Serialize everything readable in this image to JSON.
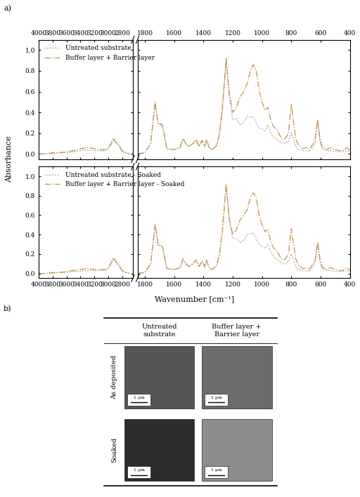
{
  "panel_labels": [
    "a)",
    "b)"
  ],
  "chart_data": [
    {
      "type": "line",
      "ylabel": "Absorbance",
      "legend": "upper left",
      "grid": false,
      "ylim": [
        -0.05,
        1.1
      ],
      "yticks": [
        {
          "value": 0,
          "label": "0.0"
        },
        0.2,
        0.4,
        0.6,
        0.8,
        {
          "value": 1,
          "label": "1.0"
        }
      ],
      "segments": [
        {
          "xlim": [
            4000,
            2650
          ],
          "xticks": [
            4000,
            3800,
            3600,
            3400,
            3200,
            3000,
            2800
          ],
          "x": [
            4000,
            3900,
            3800,
            3700,
            3600,
            3500,
            3400,
            3300,
            3200,
            3100,
            3050,
            3000,
            2960,
            2930,
            2920,
            2900,
            2870,
            2850,
            2830,
            2800,
            2750,
            2700
          ]
        },
        {
          "xlim": [
            1850,
            400
          ],
          "xticks": [
            1800,
            1600,
            1400,
            1200,
            1000,
            800,
            600,
            400
          ],
          "x": [
            1850,
            1800,
            1760,
            1730,
            1710,
            1680,
            1650,
            1600,
            1560,
            1540,
            1520,
            1500,
            1470,
            1450,
            1430,
            1410,
            1390,
            1380,
            1360,
            1340,
            1310,
            1290,
            1270,
            1245,
            1225,
            1200,
            1175,
            1150,
            1125,
            1100,
            1080,
            1060,
            1040,
            1020,
            1000,
            980,
            960,
            940,
            920,
            900,
            880,
            860,
            840,
            820,
            800,
            785,
            770,
            750,
            720,
            700,
            680,
            660,
            640,
            620,
            605,
            590,
            560,
            530,
            500,
            470,
            450,
            420,
            400
          ]
        }
      ],
      "series": [
        {
          "name": "Untreated substrate",
          "color": "#9a9a9a",
          "line_style": "dotted",
          "values": [
            [
              0.0,
              0.0,
              0.0,
              0.01,
              0.01,
              0.02,
              0.03,
              0.04,
              0.03,
              0.03,
              0.03,
              0.05,
              0.09,
              0.13,
              0.14,
              0.11,
              0.09,
              0.08,
              0.05,
              0.02,
              0.01,
              0.0
            ],
            [
              0.0,
              0.01,
              0.1,
              0.49,
              0.29,
              0.27,
              0.05,
              0.04,
              0.06,
              0.14,
              0.1,
              0.07,
              0.1,
              0.13,
              0.07,
              0.12,
              0.07,
              0.13,
              0.06,
              0.04,
              0.08,
              0.19,
              0.44,
              0.9,
              0.55,
              0.33,
              0.34,
              0.28,
              0.3,
              0.36,
              0.35,
              0.36,
              0.3,
              0.25,
              0.24,
              0.22,
              0.28,
              0.2,
              0.16,
              0.14,
              0.12,
              0.1,
              0.1,
              0.12,
              0.2,
              0.14,
              0.07,
              0.04,
              0.03,
              0.03,
              0.02,
              0.05,
              0.1,
              0.31,
              0.12,
              0.05,
              0.03,
              0.03,
              0.02,
              0.02,
              0.02,
              0.03,
              0.02
            ]
          ]
        },
        {
          "name": "Buffer layer + Barrier layer",
          "color": "#c89b5a",
          "line_style": "dashdot",
          "values": [
            [
              0.0,
              0.0,
              0.01,
              0.01,
              0.02,
              0.03,
              0.05,
              0.06,
              0.05,
              0.04,
              0.04,
              0.06,
              0.1,
              0.15,
              0.15,
              0.12,
              0.1,
              0.09,
              0.06,
              0.03,
              0.01,
              0.0
            ],
            [
              0.0,
              0.01,
              0.1,
              0.5,
              0.3,
              0.28,
              0.05,
              0.04,
              0.06,
              0.15,
              0.1,
              0.07,
              0.1,
              0.14,
              0.07,
              0.13,
              0.07,
              0.14,
              0.06,
              0.04,
              0.08,
              0.2,
              0.45,
              0.92,
              0.6,
              0.4,
              0.45,
              0.55,
              0.6,
              0.68,
              0.8,
              0.86,
              0.8,
              0.62,
              0.5,
              0.42,
              0.45,
              0.32,
              0.26,
              0.24,
              0.18,
              0.14,
              0.15,
              0.2,
              0.48,
              0.3,
              0.15,
              0.08,
              0.05,
              0.06,
              0.04,
              0.08,
              0.12,
              0.33,
              0.15,
              0.07,
              0.04,
              0.06,
              0.04,
              0.03,
              0.03,
              0.06,
              0.03
            ]
          ]
        }
      ]
    },
    {
      "type": "line",
      "xlabel": "Wavenumber [cm⁻¹]",
      "legend": "upper left",
      "grid": false,
      "ylim": [
        -0.05,
        1.1
      ],
      "yticks": [
        {
          "value": 0,
          "label": "0.0"
        },
        0.2,
        0.4,
        0.6,
        0.8,
        {
          "value": 1,
          "label": "1.0"
        }
      ],
      "segments": [
        {
          "xlim": [
            4000,
            2650
          ],
          "xticks": [
            4000,
            3800,
            3600,
            3400,
            3200,
            3000,
            2800
          ],
          "x": [
            4000,
            3900,
            3800,
            3700,
            3600,
            3500,
            3400,
            3300,
            3200,
            3100,
            3050,
            3000,
            2960,
            2930,
            2920,
            2900,
            2870,
            2850,
            2830,
            2800,
            2750,
            2700
          ]
        },
        {
          "xlim": [
            1850,
            400
          ],
          "xticks": [
            1800,
            1600,
            1400,
            1200,
            1000,
            800,
            600,
            400
          ],
          "x": [
            1850,
            1800,
            1760,
            1730,
            1710,
            1680,
            1650,
            1600,
            1560,
            1540,
            1520,
            1500,
            1470,
            1450,
            1430,
            1410,
            1390,
            1380,
            1360,
            1340,
            1310,
            1290,
            1270,
            1245,
            1225,
            1200,
            1175,
            1150,
            1125,
            1100,
            1080,
            1060,
            1040,
            1020,
            1000,
            980,
            960,
            940,
            920,
            900,
            880,
            860,
            840,
            820,
            800,
            785,
            770,
            750,
            720,
            700,
            680,
            660,
            640,
            620,
            605,
            590,
            560,
            530,
            500,
            470,
            450,
            420,
            400
          ]
        }
      ],
      "series": [
        {
          "name": "Untreated substrate - Soaked",
          "color": "#9a9a9a",
          "line_style": "dotted",
          "values": [
            [
              0.0,
              0.0,
              0.0,
              0.01,
              0.01,
              0.02,
              0.02,
              0.03,
              0.03,
              0.03,
              0.03,
              0.05,
              0.1,
              0.14,
              0.15,
              0.12,
              0.09,
              0.08,
              0.05,
              0.02,
              0.01,
              0.0
            ],
            [
              0.0,
              0.01,
              0.1,
              0.49,
              0.29,
              0.27,
              0.05,
              0.04,
              0.06,
              0.14,
              0.1,
              0.07,
              0.1,
              0.13,
              0.07,
              0.12,
              0.07,
              0.13,
              0.06,
              0.04,
              0.08,
              0.19,
              0.44,
              0.9,
              0.56,
              0.36,
              0.36,
              0.32,
              0.34,
              0.4,
              0.41,
              0.42,
              0.36,
              0.3,
              0.28,
              0.26,
              0.3,
              0.22,
              0.17,
              0.15,
              0.12,
              0.1,
              0.1,
              0.12,
              0.2,
              0.14,
              0.07,
              0.04,
              0.03,
              0.03,
              0.02,
              0.05,
              0.1,
              0.3,
              0.12,
              0.05,
              0.03,
              0.03,
              0.02,
              0.02,
              0.02,
              0.03,
              0.02
            ]
          ]
        },
        {
          "name": "Buffer layer + Barrier layer - Soaked",
          "color": "#c89b5a",
          "line_style": "dashdot",
          "values": [
            [
              0.0,
              0.0,
              0.01,
              0.01,
              0.02,
              0.03,
              0.04,
              0.05,
              0.04,
              0.04,
              0.04,
              0.06,
              0.11,
              0.16,
              0.16,
              0.13,
              0.1,
              0.09,
              0.06,
              0.03,
              0.01,
              0.0
            ],
            [
              0.0,
              0.01,
              0.1,
              0.51,
              0.3,
              0.28,
              0.05,
              0.04,
              0.06,
              0.15,
              0.1,
              0.07,
              0.1,
              0.14,
              0.07,
              0.13,
              0.07,
              0.14,
              0.06,
              0.04,
              0.08,
              0.2,
              0.45,
              0.92,
              0.58,
              0.4,
              0.45,
              0.55,
              0.6,
              0.66,
              0.78,
              0.83,
              0.78,
              0.6,
              0.5,
              0.43,
              0.45,
              0.32,
              0.26,
              0.24,
              0.18,
              0.14,
              0.15,
              0.2,
              0.46,
              0.3,
              0.15,
              0.08,
              0.05,
              0.06,
              0.04,
              0.08,
              0.12,
              0.32,
              0.15,
              0.07,
              0.04,
              0.06,
              0.04,
              0.03,
              0.03,
              0.06,
              0.03
            ]
          ]
        }
      ]
    }
  ],
  "table": {
    "columns": [
      "Untreated\nsubstrate",
      "Buffer layer +\nBarrier layer"
    ],
    "rows": [
      "As deposited",
      "Soaked"
    ],
    "scale_bar": "1 µm"
  }
}
